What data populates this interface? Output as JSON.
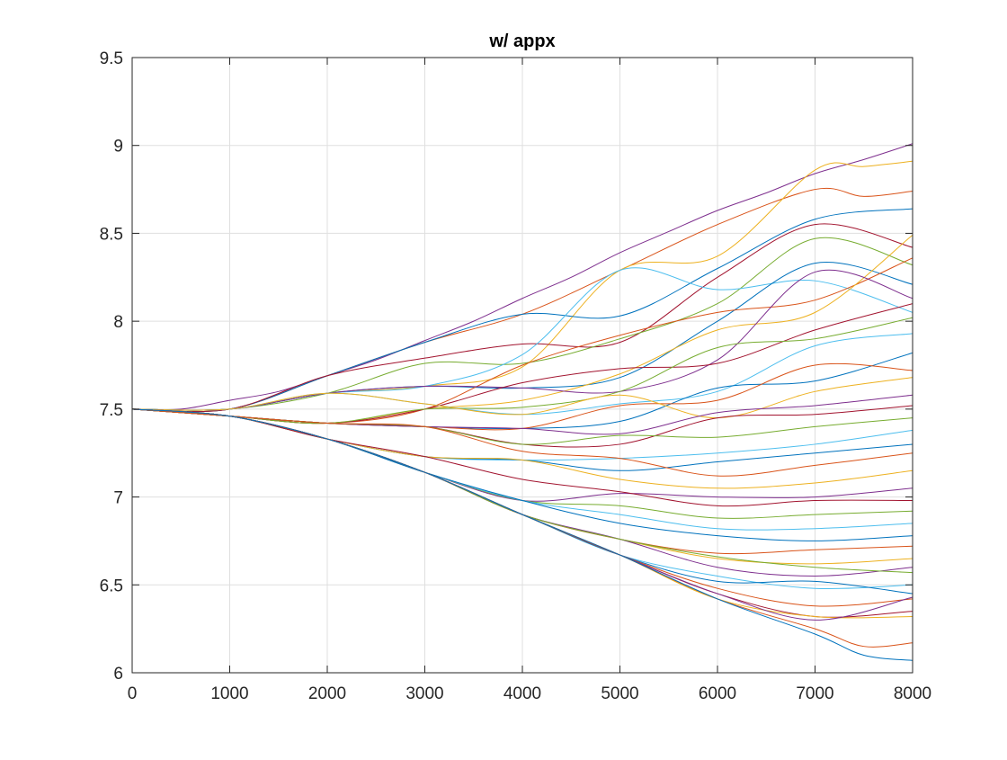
{
  "chart_data": {
    "type": "line",
    "title": "w/ appx",
    "xlabel": "",
    "ylabel": "",
    "xlim": [
      0,
      8000
    ],
    "ylim": [
      6,
      9.5
    ],
    "xticks": [
      0,
      1000,
      2000,
      3000,
      4000,
      5000,
      6000,
      7000,
      8000
    ],
    "xtick_labels": [
      "0",
      "1000",
      "2000",
      "3000",
      "4000",
      "5000",
      "6000",
      "7000",
      "8000"
    ],
    "yticks": [
      6,
      6.5,
      7,
      7.5,
      8,
      8.5,
      9,
      9.5
    ],
    "ytick_labels": [
      "6",
      "6.5",
      "7",
      "7.5",
      "8",
      "8.5",
      "9",
      "9.5"
    ],
    "grid": true,
    "legend": "none",
    "colors": [
      "#0072BD",
      "#D95319",
      "#EDB120",
      "#7E2F8E",
      "#77AC30",
      "#4DBEEE",
      "#A2142F"
    ],
    "series": [
      {
        "color": "#7E2F8E",
        "x": [
          0,
          500,
          1000,
          1500,
          2000,
          2500,
          3000,
          3500,
          4000,
          4500,
          5000,
          5500,
          6000,
          6500,
          7000,
          7500,
          8000
        ],
        "y": [
          7.5,
          7.5,
          7.55,
          7.6,
          7.69,
          7.78,
          7.89,
          8.0,
          8.13,
          8.25,
          8.39,
          8.51,
          8.63,
          8.73,
          8.84,
          8.92,
          9.01
        ]
      },
      {
        "color": "#D95319",
        "x": [
          0,
          1000,
          2000,
          3000,
          4000,
          5000,
          6000,
          7000,
          7500,
          8000
        ],
        "y": [
          7.5,
          7.5,
          7.69,
          7.88,
          8.04,
          8.29,
          8.55,
          8.75,
          8.71,
          8.74
        ]
      },
      {
        "color": "#EDB120",
        "x": [
          0,
          1000,
          2000,
          3000,
          4000,
          5000,
          6000,
          7000,
          7500,
          8000
        ],
        "y": [
          7.5,
          7.5,
          7.59,
          7.63,
          7.74,
          8.29,
          8.37,
          8.86,
          8.88,
          8.91
        ]
      },
      {
        "color": "#0072BD",
        "x": [
          0,
          1000,
          2000,
          3000,
          4000,
          5000,
          6000,
          7000,
          8000
        ],
        "y": [
          7.5,
          7.5,
          7.69,
          7.88,
          8.04,
          8.03,
          8.3,
          8.58,
          8.64
        ]
      },
      {
        "color": "#A2142F",
        "x": [
          0,
          1000,
          2000,
          3000,
          4000,
          5000,
          6000,
          7000,
          8000
        ],
        "y": [
          7.5,
          7.5,
          7.69,
          7.79,
          7.87,
          7.88,
          8.25,
          8.55,
          8.42
        ]
      },
      {
        "color": "#77AC30",
        "x": [
          0,
          1000,
          2000,
          3000,
          4000,
          5000,
          6000,
          7000,
          8000
        ],
        "y": [
          7.5,
          7.5,
          7.59,
          7.76,
          7.76,
          7.9,
          8.1,
          8.47,
          8.32
        ]
      },
      {
        "color": "#4DBEEE",
        "x": [
          0,
          1000,
          2000,
          3000,
          4000,
          5000,
          6000,
          7000,
          8000
        ],
        "y": [
          7.5,
          7.5,
          7.59,
          7.63,
          7.81,
          8.29,
          8.18,
          8.23,
          8.05
        ]
      },
      {
        "color": "#0072BD",
        "x": [
          0,
          1000,
          2000,
          3000,
          4000,
          5000,
          6000,
          7000,
          8000
        ],
        "y": [
          7.5,
          7.5,
          7.59,
          7.63,
          7.62,
          7.68,
          8.0,
          8.33,
          8.21
        ]
      },
      {
        "color": "#D95319",
        "x": [
          0,
          1000,
          2000,
          3000,
          4000,
          5000,
          6000,
          7000,
          8000
        ],
        "y": [
          7.5,
          7.46,
          7.42,
          7.5,
          7.75,
          7.92,
          8.05,
          8.12,
          8.36
        ]
      },
      {
        "color": "#EDB120",
        "x": [
          0,
          1000,
          2000,
          3000,
          4000,
          5000,
          6000,
          7000,
          8000
        ],
        "y": [
          7.5,
          7.46,
          7.42,
          7.5,
          7.55,
          7.7,
          7.95,
          8.05,
          8.49
        ]
      },
      {
        "color": "#7E2F8E",
        "x": [
          0,
          1000,
          2000,
          3000,
          4000,
          5000,
          6000,
          7000,
          8000
        ],
        "y": [
          7.5,
          7.5,
          7.59,
          7.63,
          7.62,
          7.6,
          7.78,
          8.28,
          8.13
        ]
      },
      {
        "color": "#A2142F",
        "x": [
          0,
          1000,
          2000,
          3000,
          4000,
          5000,
          6000,
          7000,
          8000
        ],
        "y": [
          7.5,
          7.46,
          7.42,
          7.5,
          7.65,
          7.73,
          7.76,
          7.95,
          8.1
        ]
      },
      {
        "color": "#77AC30",
        "x": [
          0,
          1000,
          2000,
          3000,
          4000,
          5000,
          6000,
          7000,
          8000
        ],
        "y": [
          7.5,
          7.46,
          7.42,
          7.5,
          7.51,
          7.6,
          7.85,
          7.9,
          8.02
        ]
      },
      {
        "color": "#4DBEEE",
        "x": [
          0,
          1000,
          2000,
          3000,
          4000,
          5000,
          6000,
          7000,
          8000
        ],
        "y": [
          7.5,
          7.5,
          7.59,
          7.53,
          7.47,
          7.53,
          7.6,
          7.86,
          7.93
        ]
      },
      {
        "color": "#0072BD",
        "x": [
          0,
          1000,
          2000,
          3000,
          4000,
          5000,
          6000,
          7000,
          8000
        ],
        "y": [
          7.5,
          7.46,
          7.42,
          7.4,
          7.39,
          7.43,
          7.62,
          7.66,
          7.82
        ]
      },
      {
        "color": "#D95319",
        "x": [
          0,
          1000,
          2000,
          3000,
          4000,
          5000,
          6000,
          7000,
          8000
        ],
        "y": [
          7.5,
          7.46,
          7.42,
          7.4,
          7.39,
          7.52,
          7.55,
          7.75,
          7.72
        ]
      },
      {
        "color": "#EDB120",
        "x": [
          0,
          1000,
          2000,
          3000,
          4000,
          5000,
          6000,
          7000,
          8000
        ],
        "y": [
          7.5,
          7.5,
          7.59,
          7.53,
          7.47,
          7.58,
          7.45,
          7.6,
          7.68
        ]
      },
      {
        "color": "#7E2F8E",
        "x": [
          0,
          1000,
          2000,
          3000,
          4000,
          5000,
          6000,
          7000,
          8000
        ],
        "y": [
          7.5,
          7.46,
          7.42,
          7.4,
          7.39,
          7.36,
          7.48,
          7.52,
          7.58
        ]
      },
      {
        "color": "#A2142F",
        "x": [
          0,
          1000,
          2000,
          3000,
          4000,
          5000,
          6000,
          7000,
          8000
        ],
        "y": [
          7.5,
          7.46,
          7.42,
          7.4,
          7.3,
          7.3,
          7.45,
          7.47,
          7.52
        ]
      },
      {
        "color": "#77AC30",
        "x": [
          0,
          1000,
          2000,
          3000,
          4000,
          5000,
          6000,
          7000,
          8000
        ],
        "y": [
          7.5,
          7.46,
          7.42,
          7.4,
          7.3,
          7.35,
          7.34,
          7.4,
          7.45
        ]
      },
      {
        "color": "#4DBEEE",
        "x": [
          0,
          1000,
          2000,
          3000,
          4000,
          5000,
          6000,
          7000,
          8000
        ],
        "y": [
          7.5,
          7.46,
          7.33,
          7.23,
          7.21,
          7.22,
          7.25,
          7.3,
          7.38
        ]
      },
      {
        "color": "#0072BD",
        "x": [
          0,
          1000,
          2000,
          3000,
          4000,
          5000,
          6000,
          7000,
          8000
        ],
        "y": [
          7.5,
          7.46,
          7.33,
          7.23,
          7.21,
          7.15,
          7.2,
          7.25,
          7.3
        ]
      },
      {
        "color": "#D95319",
        "x": [
          0,
          1000,
          2000,
          3000,
          4000,
          5000,
          6000,
          7000,
          8000
        ],
        "y": [
          7.5,
          7.46,
          7.42,
          7.4,
          7.26,
          7.22,
          7.12,
          7.18,
          7.25
        ]
      },
      {
        "color": "#EDB120",
        "x": [
          0,
          1000,
          2000,
          3000,
          4000,
          5000,
          6000,
          7000,
          8000
        ],
        "y": [
          7.5,
          7.46,
          7.33,
          7.23,
          7.21,
          7.1,
          7.05,
          7.08,
          7.15
        ]
      },
      {
        "color": "#7E2F8E",
        "x": [
          0,
          1000,
          2000,
          3000,
          4000,
          5000,
          6000,
          7000,
          8000
        ],
        "y": [
          7.5,
          7.46,
          7.33,
          7.14,
          6.98,
          7.02,
          7.0,
          7.0,
          7.05
        ]
      },
      {
        "color": "#A2142F",
        "x": [
          0,
          1000,
          2000,
          3000,
          4000,
          5000,
          6000,
          7000,
          8000
        ],
        "y": [
          7.5,
          7.46,
          7.33,
          7.23,
          7.1,
          7.03,
          6.95,
          6.98,
          6.98
        ]
      },
      {
        "color": "#77AC30",
        "x": [
          0,
          1000,
          2000,
          3000,
          4000,
          5000,
          6000,
          7000,
          8000
        ],
        "y": [
          7.5,
          7.46,
          7.33,
          7.14,
          6.98,
          6.95,
          6.88,
          6.9,
          6.92
        ]
      },
      {
        "color": "#4DBEEE",
        "x": [
          0,
          1000,
          2000,
          3000,
          4000,
          5000,
          6000,
          7000,
          8000
        ],
        "y": [
          7.5,
          7.46,
          7.33,
          7.14,
          6.98,
          6.9,
          6.82,
          6.82,
          6.85
        ]
      },
      {
        "color": "#0072BD",
        "x": [
          0,
          1000,
          2000,
          3000,
          4000,
          5000,
          6000,
          7000,
          8000
        ],
        "y": [
          7.5,
          7.46,
          7.33,
          7.14,
          6.98,
          6.85,
          6.78,
          6.75,
          6.78
        ]
      },
      {
        "color": "#D95319",
        "x": [
          0,
          1000,
          2000,
          3000,
          4000,
          5000,
          6000,
          7000,
          8000
        ],
        "y": [
          7.5,
          7.46,
          7.33,
          7.14,
          6.9,
          6.76,
          6.68,
          6.7,
          6.72
        ]
      },
      {
        "color": "#EDB120",
        "x": [
          0,
          1000,
          2000,
          3000,
          4000,
          5000,
          6000,
          7000,
          8000
        ],
        "y": [
          7.5,
          7.46,
          7.33,
          7.14,
          6.9,
          6.76,
          6.65,
          6.62,
          6.65
        ]
      },
      {
        "color": "#7E2F8E",
        "x": [
          0,
          1000,
          2000,
          3000,
          4000,
          5000,
          6000,
          7000,
          8000
        ],
        "y": [
          7.5,
          7.46,
          7.33,
          7.14,
          6.9,
          6.76,
          6.6,
          6.55,
          6.6
        ]
      },
      {
        "color": "#77AC30",
        "x": [
          0,
          1000,
          2000,
          3000,
          4000,
          5000,
          6000,
          7000,
          8000
        ],
        "y": [
          7.5,
          7.46,
          7.33,
          7.14,
          6.9,
          6.76,
          6.66,
          6.6,
          6.57
        ]
      },
      {
        "color": "#4DBEEE",
        "x": [
          0,
          1000,
          2000,
          3000,
          4000,
          5000,
          6000,
          7000,
          8000
        ],
        "y": [
          7.5,
          7.46,
          7.33,
          7.14,
          6.9,
          6.67,
          6.55,
          6.48,
          6.5
        ]
      },
      {
        "color": "#0072BD",
        "x": [
          0,
          1000,
          2000,
          3000,
          4000,
          5000,
          6000,
          7000,
          8000
        ],
        "y": [
          7.5,
          7.46,
          7.33,
          7.14,
          6.9,
          6.67,
          6.52,
          6.52,
          6.45
        ]
      },
      {
        "color": "#D95319",
        "x": [
          0,
          1000,
          2000,
          3000,
          4000,
          5000,
          6000,
          7000,
          8000
        ],
        "y": [
          7.5,
          7.46,
          7.33,
          7.14,
          6.9,
          6.67,
          6.48,
          6.38,
          6.42
        ]
      },
      {
        "color": "#A2142F",
        "x": [
          0,
          1000,
          2000,
          3000,
          4000,
          5000,
          6000,
          7000,
          8000
        ],
        "y": [
          7.5,
          7.46,
          7.33,
          7.14,
          6.9,
          6.67,
          6.45,
          6.32,
          6.35
        ]
      },
      {
        "color": "#EDB120",
        "x": [
          0,
          1000,
          2000,
          3000,
          4000,
          5000,
          6000,
          7000,
          8000
        ],
        "y": [
          7.5,
          7.46,
          7.33,
          7.14,
          6.9,
          6.67,
          6.42,
          6.32,
          6.32
        ]
      },
      {
        "color": "#7E2F8E",
        "x": [
          0,
          1000,
          2000,
          3000,
          4000,
          5000,
          6000,
          7000,
          8000
        ],
        "y": [
          7.5,
          7.46,
          7.33,
          7.14,
          6.9,
          6.67,
          6.45,
          6.3,
          6.43
        ]
      },
      {
        "color": "#D95319",
        "x": [
          0,
          1000,
          2000,
          3000,
          4000,
          5000,
          6000,
          7000,
          7500,
          8000
        ],
        "y": [
          7.5,
          7.46,
          7.33,
          7.14,
          6.9,
          6.67,
          6.42,
          6.25,
          6.15,
          6.17
        ]
      },
      {
        "color": "#0072BD",
        "x": [
          0,
          1000,
          2000,
          3000,
          4000,
          5000,
          6000,
          7000,
          7500,
          8000
        ],
        "y": [
          7.5,
          7.46,
          7.33,
          7.14,
          6.9,
          6.67,
          6.42,
          6.22,
          6.1,
          6.07
        ]
      }
    ]
  }
}
